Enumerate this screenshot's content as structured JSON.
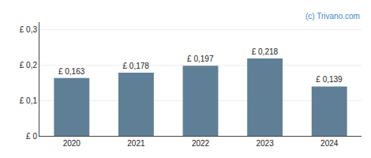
{
  "chart_data": {
    "type": "bar",
    "x": [
      2020,
      2021,
      2022,
      2023,
      2024
    ],
    "values": [
      0.163,
      0.178,
      0.197,
      0.218,
      0.139
    ],
    "value_labels": [
      "£ 0,163",
      "£ 0,178",
      "£ 0,197",
      "£ 0,218",
      "£ 0,139"
    ],
    "data_labels": true,
    "color": "#5f7f96",
    "xlim": [
      2019.5,
      2024.5
    ],
    "xticks": [
      2020,
      2021,
      2022,
      2023,
      2024
    ],
    "ylim": [
      0,
      0.32
    ],
    "yticks": [
      {
        "value": 0,
        "label": "£ 0"
      },
      {
        "value": 0.1,
        "label": "£ 0,1"
      },
      {
        "value": 0.2,
        "label": "£ 0,2"
      },
      {
        "value": 0.3,
        "label": "£ 0,3"
      }
    ],
    "grid": true,
    "annotations": [
      "(c) Trivano.com"
    ]
  }
}
